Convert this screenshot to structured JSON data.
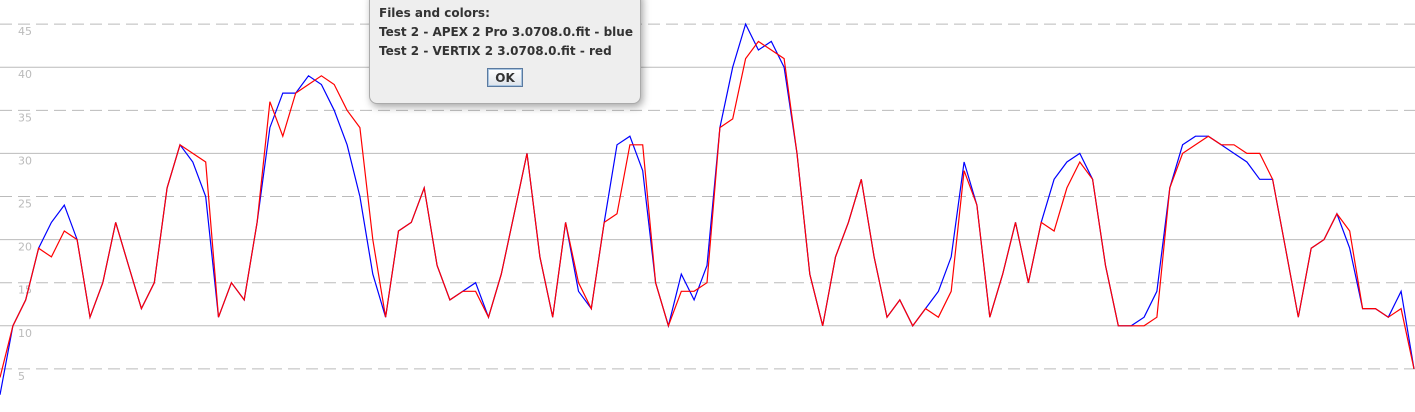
{
  "chart_data": {
    "type": "line",
    "ylim": [
      0,
      47.8
    ],
    "yticks": [
      5,
      10,
      15,
      20,
      25,
      30,
      35,
      40,
      45
    ],
    "grid": true,
    "series": [
      {
        "name": "blue",
        "color": "#0000ff",
        "values": [
          2,
          10,
          13,
          19,
          22,
          24,
          20,
          11,
          15,
          22,
          17,
          12,
          15,
          26,
          31,
          29,
          25,
          11,
          15,
          13,
          22,
          33,
          37,
          37,
          39,
          38,
          35,
          31,
          25,
          16,
          11,
          21,
          22,
          26,
          17,
          13,
          14,
          15,
          11,
          16,
          23,
          30,
          18,
          11,
          22,
          14,
          12,
          22,
          31,
          32,
          28,
          15,
          10,
          16,
          13,
          17,
          33,
          40,
          45,
          42,
          43,
          40,
          30,
          16,
          10,
          18,
          22,
          27,
          18,
          11,
          13,
          10,
          12,
          14,
          18,
          29,
          24,
          11,
          16,
          22,
          15,
          22,
          27,
          29,
          30,
          27,
          17,
          10,
          10,
          11,
          14,
          26,
          31,
          32,
          32,
          31,
          30,
          29,
          27,
          27,
          19,
          11,
          19,
          20,
          23,
          19,
          12,
          12,
          11,
          14,
          5
        ]
      },
      {
        "name": "red",
        "color": "#ff0000",
        "values": [
          4,
          10,
          13,
          19,
          18,
          21,
          20,
          11,
          15,
          22,
          17,
          12,
          15,
          26,
          31,
          30,
          29,
          11,
          15,
          13,
          22,
          36,
          32,
          37,
          38,
          39,
          38,
          35,
          33,
          20,
          11,
          21,
          22,
          26,
          17,
          13,
          14,
          14,
          11,
          16,
          23,
          30,
          18,
          11,
          22,
          15,
          12,
          22,
          23,
          31,
          31,
          15,
          10,
          14,
          14,
          15,
          33,
          34,
          41,
          43,
          42,
          41,
          30,
          16,
          10,
          18,
          22,
          27,
          18,
          11,
          13,
          10,
          12,
          11,
          14,
          28,
          24,
          11,
          16,
          22,
          15,
          22,
          21,
          26,
          29,
          27,
          17,
          10,
          10,
          10,
          11,
          26,
          30,
          31,
          32,
          31,
          31,
          30,
          30,
          27,
          19,
          11,
          19,
          20,
          23,
          21,
          12,
          12,
          11,
          12,
          5
        ]
      }
    ]
  },
  "dialog": {
    "heading": "Files and colors:",
    "lines": [
      "Test 2 - APEX 2 Pro 3.0708.0.fit - blue",
      "Test 2 - VERTIX 2 3.0708.0.fit - red"
    ],
    "button": "OK"
  }
}
